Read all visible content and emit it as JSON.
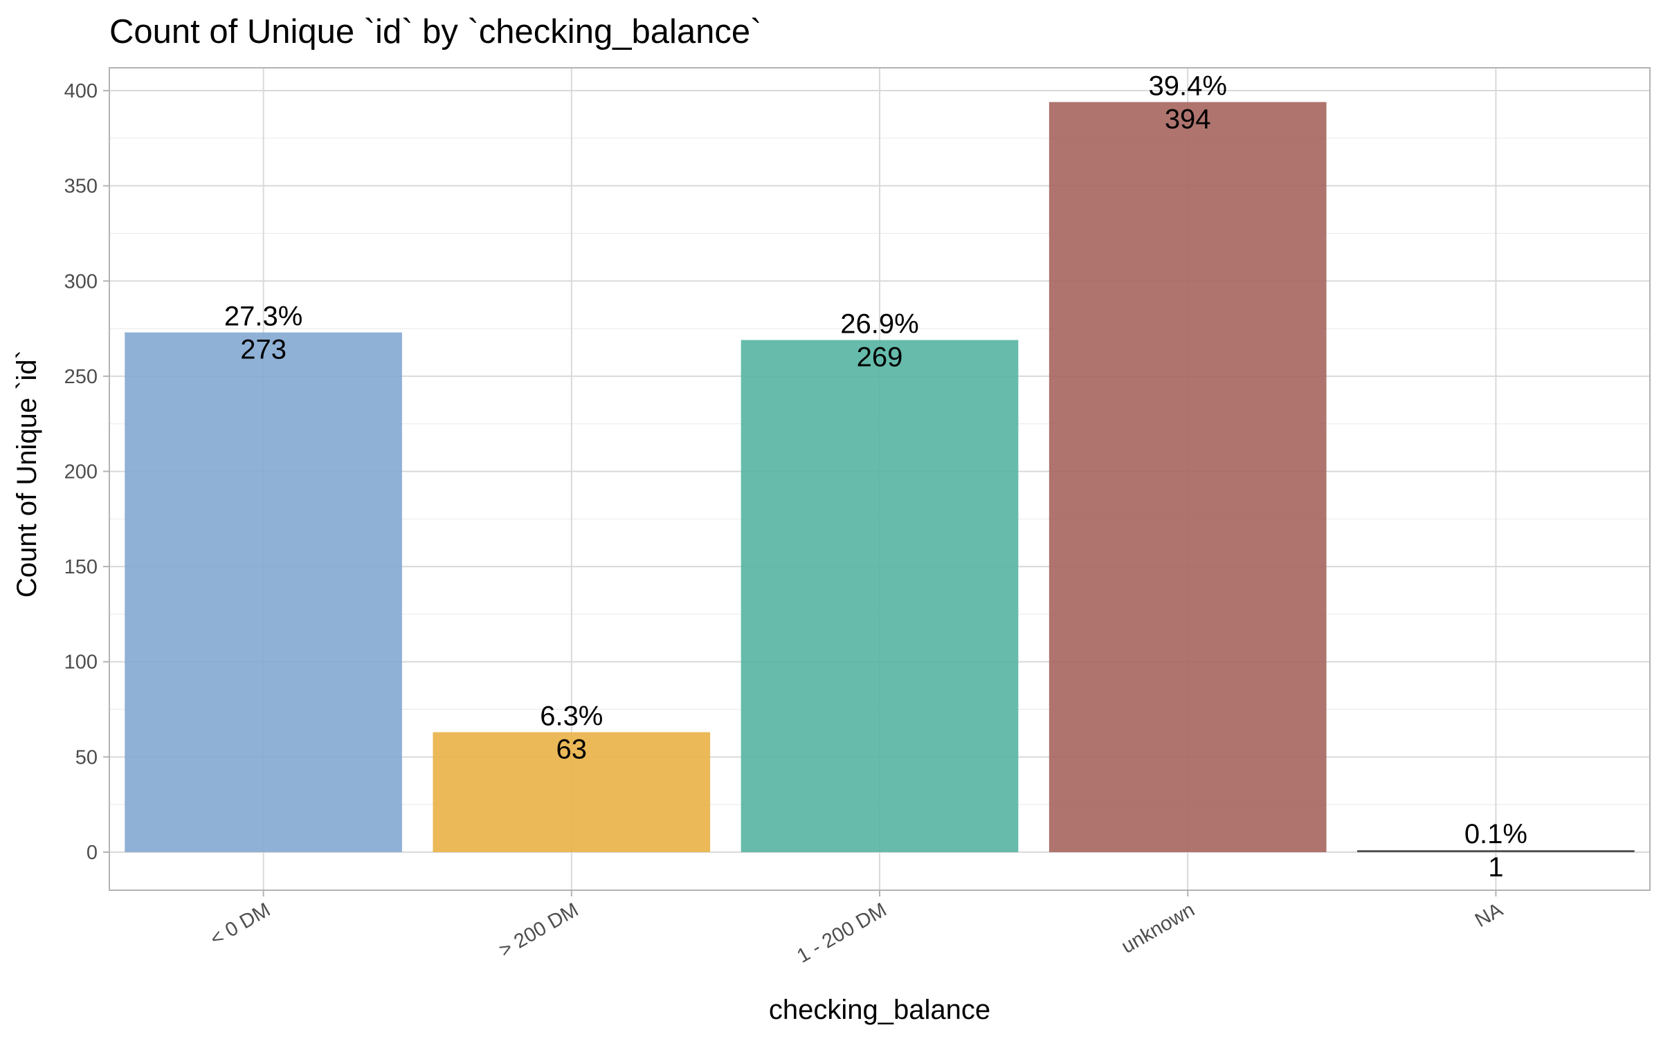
{
  "chart_data": {
    "type": "bar",
    "title": "Count of Unique `id` by `checking_balance`",
    "xlabel": "checking_balance",
    "ylabel": "Count of Unique `id`",
    "categories": [
      "< 0 DM",
      "> 200 DM",
      "1 - 200 DM",
      "unknown",
      "NA"
    ],
    "values": [
      273,
      63,
      269,
      394,
      1
    ],
    "percent_labels": [
      "27.3%",
      "6.3%",
      "26.9%",
      "39.4%",
      "0.1%"
    ],
    "value_labels": [
      "273",
      "63",
      "269",
      "394",
      "1"
    ],
    "yticks": [
      0,
      50,
      100,
      150,
      200,
      250,
      300,
      350,
      400
    ],
    "ylim": [
      -20,
      412
    ],
    "grid": true,
    "legend": "none",
    "colors": [
      "#84A9D1",
      "#E9B146",
      "#55B4A2",
      "#A6655E",
      "#4d4d4d"
    ]
  }
}
